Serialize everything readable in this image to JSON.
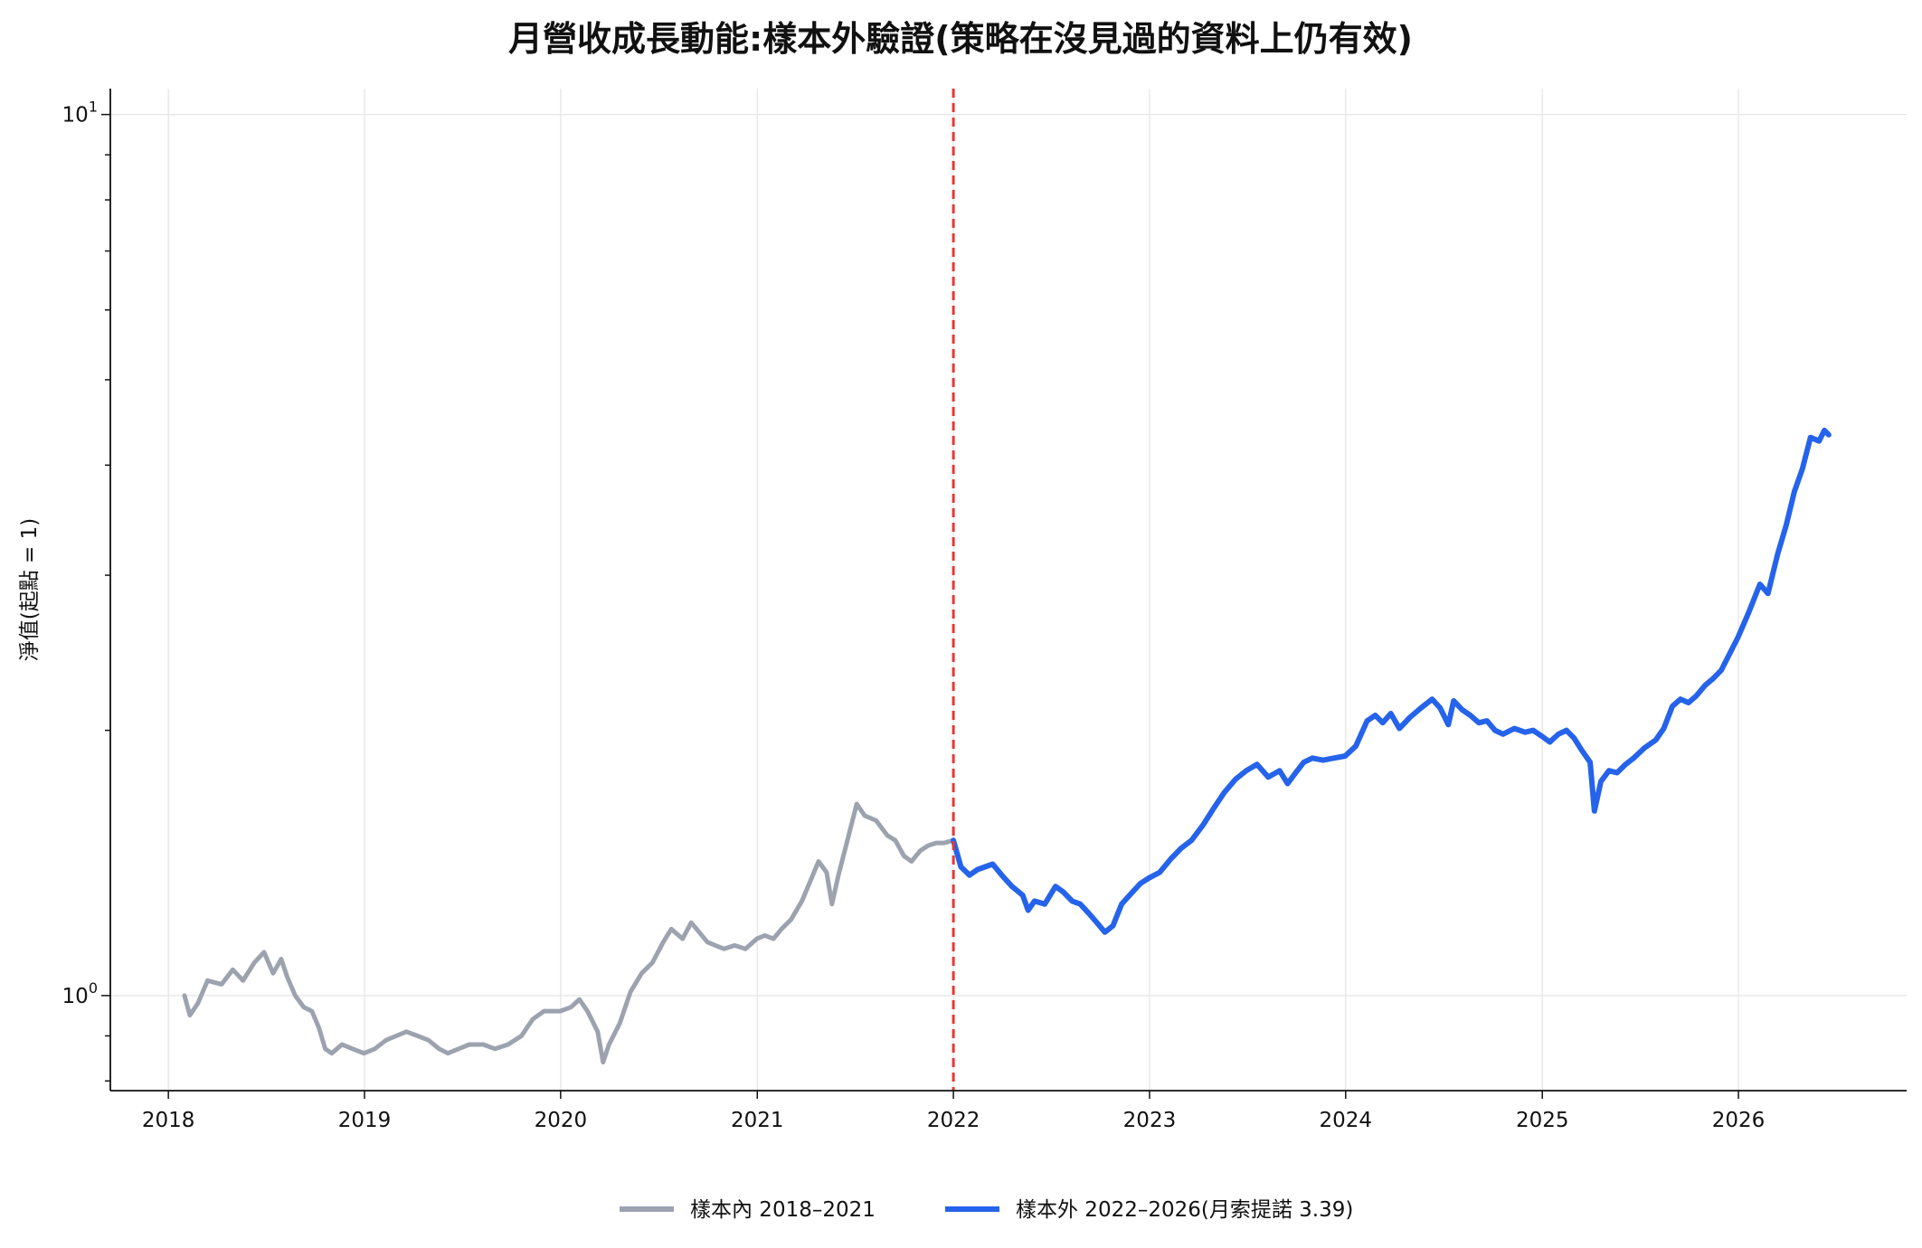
{
  "chart_data": {
    "type": "line",
    "title": "月營收成長動能:樣本外驗證(策略在沒見過的資料上仍有效)",
    "xlabel": "",
    "ylabel": "淨值(起點 = 1)",
    "y_scale": "log",
    "ylim": [
      0.78,
      10.7
    ],
    "xlim": [
      "2017-09-15",
      "2026-11-10"
    ],
    "grid": true,
    "legend_position": "bottom-center",
    "x_ticks": [
      "2018",
      "2019",
      "2020",
      "2021",
      "2022",
      "2023",
      "2024",
      "2025",
      "2026"
    ],
    "y_ticks": [
      {
        "base": "10",
        "exp": "0",
        "value": 1
      },
      {
        "base": "10",
        "exp": "1",
        "value": 10
      }
    ],
    "split_date": "2022-01-01",
    "split_line_color": "#e53935",
    "series": [
      {
        "name": "樣本內 2018–2021",
        "color": "#9ca3af",
        "points": [
          [
            "2018-01-31",
            1.0
          ],
          [
            "2018-02-10",
            0.95
          ],
          [
            "2018-02-25",
            0.98
          ],
          [
            "2018-03-15",
            1.04
          ],
          [
            "2018-04-10",
            1.03
          ],
          [
            "2018-05-01",
            1.07
          ],
          [
            "2018-05-20",
            1.04
          ],
          [
            "2018-06-10",
            1.09
          ],
          [
            "2018-06-28",
            1.12
          ],
          [
            "2018-07-15",
            1.06
          ],
          [
            "2018-07-30",
            1.1
          ],
          [
            "2018-08-10",
            1.05
          ],
          [
            "2018-08-25",
            1.0
          ],
          [
            "2018-09-10",
            0.97
          ],
          [
            "2018-09-25",
            0.96
          ],
          [
            "2018-10-08",
            0.92
          ],
          [
            "2018-10-20",
            0.87
          ],
          [
            "2018-11-01",
            0.86
          ],
          [
            "2018-11-20",
            0.88
          ],
          [
            "2018-12-10",
            0.87
          ],
          [
            "2018-12-31",
            0.86
          ],
          [
            "2019-01-20",
            0.87
          ],
          [
            "2019-02-10",
            0.89
          ],
          [
            "2019-03-01",
            0.9
          ],
          [
            "2019-03-20",
            0.91
          ],
          [
            "2019-04-10",
            0.9
          ],
          [
            "2019-04-30",
            0.89
          ],
          [
            "2019-05-20",
            0.87
          ],
          [
            "2019-06-05",
            0.86
          ],
          [
            "2019-06-25",
            0.87
          ],
          [
            "2019-07-15",
            0.88
          ],
          [
            "2019-08-10",
            0.88
          ],
          [
            "2019-09-01",
            0.87
          ],
          [
            "2019-09-25",
            0.88
          ],
          [
            "2019-10-20",
            0.9
          ],
          [
            "2019-11-10",
            0.94
          ],
          [
            "2019-12-01",
            0.96
          ],
          [
            "2019-12-31",
            0.96
          ],
          [
            "2020-01-20",
            0.97
          ],
          [
            "2020-02-05",
            0.99
          ],
          [
            "2020-02-20",
            0.96
          ],
          [
            "2020-03-10",
            0.91
          ],
          [
            "2020-03-20",
            0.84
          ],
          [
            "2020-03-31",
            0.88
          ],
          [
            "2020-04-20",
            0.93
          ],
          [
            "2020-05-10",
            1.01
          ],
          [
            "2020-05-31",
            1.06
          ],
          [
            "2020-06-20",
            1.09
          ],
          [
            "2020-07-10",
            1.15
          ],
          [
            "2020-07-25",
            1.19
          ],
          [
            "2020-08-15",
            1.16
          ],
          [
            "2020-08-31",
            1.21
          ],
          [
            "2020-09-15",
            1.18
          ],
          [
            "2020-09-30",
            1.15
          ],
          [
            "2020-10-15",
            1.14
          ],
          [
            "2020-10-31",
            1.13
          ],
          [
            "2020-11-20",
            1.14
          ],
          [
            "2020-12-10",
            1.13
          ],
          [
            "2020-12-31",
            1.16
          ],
          [
            "2021-01-15",
            1.17
          ],
          [
            "2021-01-31",
            1.16
          ],
          [
            "2021-02-15",
            1.19
          ],
          [
            "2021-03-05",
            1.22
          ],
          [
            "2021-03-25",
            1.28
          ],
          [
            "2021-04-10",
            1.35
          ],
          [
            "2021-04-25",
            1.42
          ],
          [
            "2021-05-10",
            1.38
          ],
          [
            "2021-05-20",
            1.27
          ],
          [
            "2021-06-01",
            1.37
          ],
          [
            "2021-06-20",
            1.52
          ],
          [
            "2021-07-05",
            1.65
          ],
          [
            "2021-07-20",
            1.6
          ],
          [
            "2021-08-10",
            1.58
          ],
          [
            "2021-08-31",
            1.52
          ],
          [
            "2021-09-15",
            1.5
          ],
          [
            "2021-10-01",
            1.44
          ],
          [
            "2021-10-15",
            1.42
          ],
          [
            "2021-10-31",
            1.46
          ],
          [
            "2021-11-15",
            1.48
          ],
          [
            "2021-11-30",
            1.49
          ],
          [
            "2021-12-15",
            1.49
          ],
          [
            "2021-12-31",
            1.5
          ]
        ]
      },
      {
        "name": "樣本外 2022–2026(月索提諾 3.39)",
        "color": "#2563eb",
        "points": [
          [
            "2022-01-01",
            1.5
          ],
          [
            "2022-01-15",
            1.4
          ],
          [
            "2022-01-31",
            1.37
          ],
          [
            "2022-02-15",
            1.39
          ],
          [
            "2022-03-01",
            1.4
          ],
          [
            "2022-03-15",
            1.41
          ],
          [
            "2022-04-01",
            1.37
          ],
          [
            "2022-04-20",
            1.33
          ],
          [
            "2022-05-10",
            1.3
          ],
          [
            "2022-05-20",
            1.25
          ],
          [
            "2022-06-01",
            1.28
          ],
          [
            "2022-06-20",
            1.27
          ],
          [
            "2022-07-10",
            1.33
          ],
          [
            "2022-07-25",
            1.31
          ],
          [
            "2022-08-10",
            1.28
          ],
          [
            "2022-08-25",
            1.27
          ],
          [
            "2022-09-10",
            1.24
          ],
          [
            "2022-09-25",
            1.21
          ],
          [
            "2022-10-10",
            1.18
          ],
          [
            "2022-10-25",
            1.2
          ],
          [
            "2022-11-10",
            1.27
          ],
          [
            "2022-11-30",
            1.31
          ],
          [
            "2022-12-15",
            1.34
          ],
          [
            "2022-12-31",
            1.36
          ],
          [
            "2023-01-20",
            1.38
          ],
          [
            "2023-02-10",
            1.43
          ],
          [
            "2023-03-01",
            1.47
          ],
          [
            "2023-03-20",
            1.5
          ],
          [
            "2023-04-10",
            1.56
          ],
          [
            "2023-04-30",
            1.63
          ],
          [
            "2023-05-20",
            1.7
          ],
          [
            "2023-06-10",
            1.76
          ],
          [
            "2023-06-30",
            1.8
          ],
          [
            "2023-07-20",
            1.83
          ],
          [
            "2023-08-10",
            1.77
          ],
          [
            "2023-08-31",
            1.8
          ],
          [
            "2023-09-15",
            1.74
          ],
          [
            "2023-09-30",
            1.79
          ],
          [
            "2023-10-15",
            1.84
          ],
          [
            "2023-10-31",
            1.86
          ],
          [
            "2023-11-20",
            1.85
          ],
          [
            "2023-12-10",
            1.86
          ],
          [
            "2023-12-31",
            1.87
          ],
          [
            "2024-01-20",
            1.92
          ],
          [
            "2024-02-10",
            2.05
          ],
          [
            "2024-02-25",
            2.08
          ],
          [
            "2024-03-10",
            2.04
          ],
          [
            "2024-03-25",
            2.09
          ],
          [
            "2024-04-10",
            2.01
          ],
          [
            "2024-04-30",
            2.07
          ],
          [
            "2024-05-20",
            2.12
          ],
          [
            "2024-06-10",
            2.17
          ],
          [
            "2024-06-25",
            2.12
          ],
          [
            "2024-07-10",
            2.03
          ],
          [
            "2024-07-20",
            2.16
          ],
          [
            "2024-08-05",
            2.11
          ],
          [
            "2024-08-20",
            2.08
          ],
          [
            "2024-09-05",
            2.04
          ],
          [
            "2024-09-20",
            2.05
          ],
          [
            "2024-10-05",
            2.0
          ],
          [
            "2024-10-20",
            1.98
          ],
          [
            "2024-11-10",
            2.01
          ],
          [
            "2024-11-30",
            1.99
          ],
          [
            "2024-12-15",
            2.0
          ],
          [
            "2024-12-31",
            1.97
          ],
          [
            "2025-01-15",
            1.94
          ],
          [
            "2025-01-31",
            1.98
          ],
          [
            "2025-02-15",
            2.0
          ],
          [
            "2025-03-01",
            1.96
          ],
          [
            "2025-03-15",
            1.9
          ],
          [
            "2025-03-31",
            1.84
          ],
          [
            "2025-04-08",
            1.62
          ],
          [
            "2025-04-20",
            1.75
          ],
          [
            "2025-05-05",
            1.8
          ],
          [
            "2025-05-20",
            1.79
          ],
          [
            "2025-06-05",
            1.83
          ],
          [
            "2025-06-20",
            1.86
          ],
          [
            "2025-07-10",
            1.91
          ],
          [
            "2025-07-31",
            1.95
          ],
          [
            "2025-08-15",
            2.01
          ],
          [
            "2025-08-31",
            2.13
          ],
          [
            "2025-09-15",
            2.17
          ],
          [
            "2025-09-30",
            2.15
          ],
          [
            "2025-10-15",
            2.19
          ],
          [
            "2025-10-31",
            2.25
          ],
          [
            "2025-11-15",
            2.29
          ],
          [
            "2025-11-30",
            2.34
          ],
          [
            "2025-12-15",
            2.44
          ],
          [
            "2025-12-31",
            2.55
          ],
          [
            "2026-01-20",
            2.72
          ],
          [
            "2026-02-10",
            2.93
          ],
          [
            "2026-02-25",
            2.86
          ],
          [
            "2026-03-15",
            3.17
          ],
          [
            "2026-03-31",
            3.42
          ],
          [
            "2026-04-15",
            3.73
          ],
          [
            "2026-04-30",
            3.96
          ],
          [
            "2026-05-15",
            4.3
          ],
          [
            "2026-05-31",
            4.26
          ],
          [
            "2026-06-10",
            4.38
          ],
          [
            "2026-06-18",
            4.33
          ]
        ]
      }
    ]
  }
}
